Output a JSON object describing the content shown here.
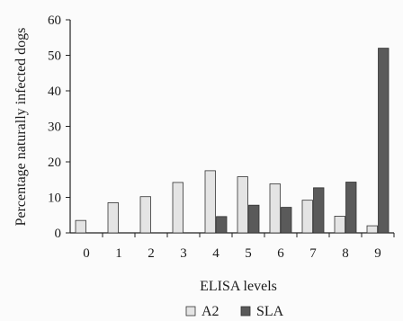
{
  "chart_data": {
    "type": "bar",
    "title": "",
    "xlabel": "ELISA levels",
    "ylabel": "Percentage naturally infected dogs",
    "categories": [
      "0",
      "1",
      "2",
      "3",
      "4",
      "5",
      "6",
      "7",
      "8",
      "9"
    ],
    "series": [
      {
        "name": "A2",
        "color": "#e4e4e4",
        "values": [
          3.5,
          8.5,
          10.2,
          14.2,
          17.5,
          15.8,
          13.8,
          9.2,
          4.7,
          2.0
        ]
      },
      {
        "name": "SLA",
        "color": "#5a5a5a",
        "values": [
          0,
          0,
          0,
          0,
          4.6,
          7.8,
          7.2,
          12.7,
          14.3,
          52.0
        ]
      }
    ],
    "ylim": [
      0,
      60
    ],
    "yticks": [
      "0",
      "10",
      "20",
      "30",
      "40",
      "50",
      "60"
    ],
    "grid": false,
    "legend": "bottom"
  }
}
